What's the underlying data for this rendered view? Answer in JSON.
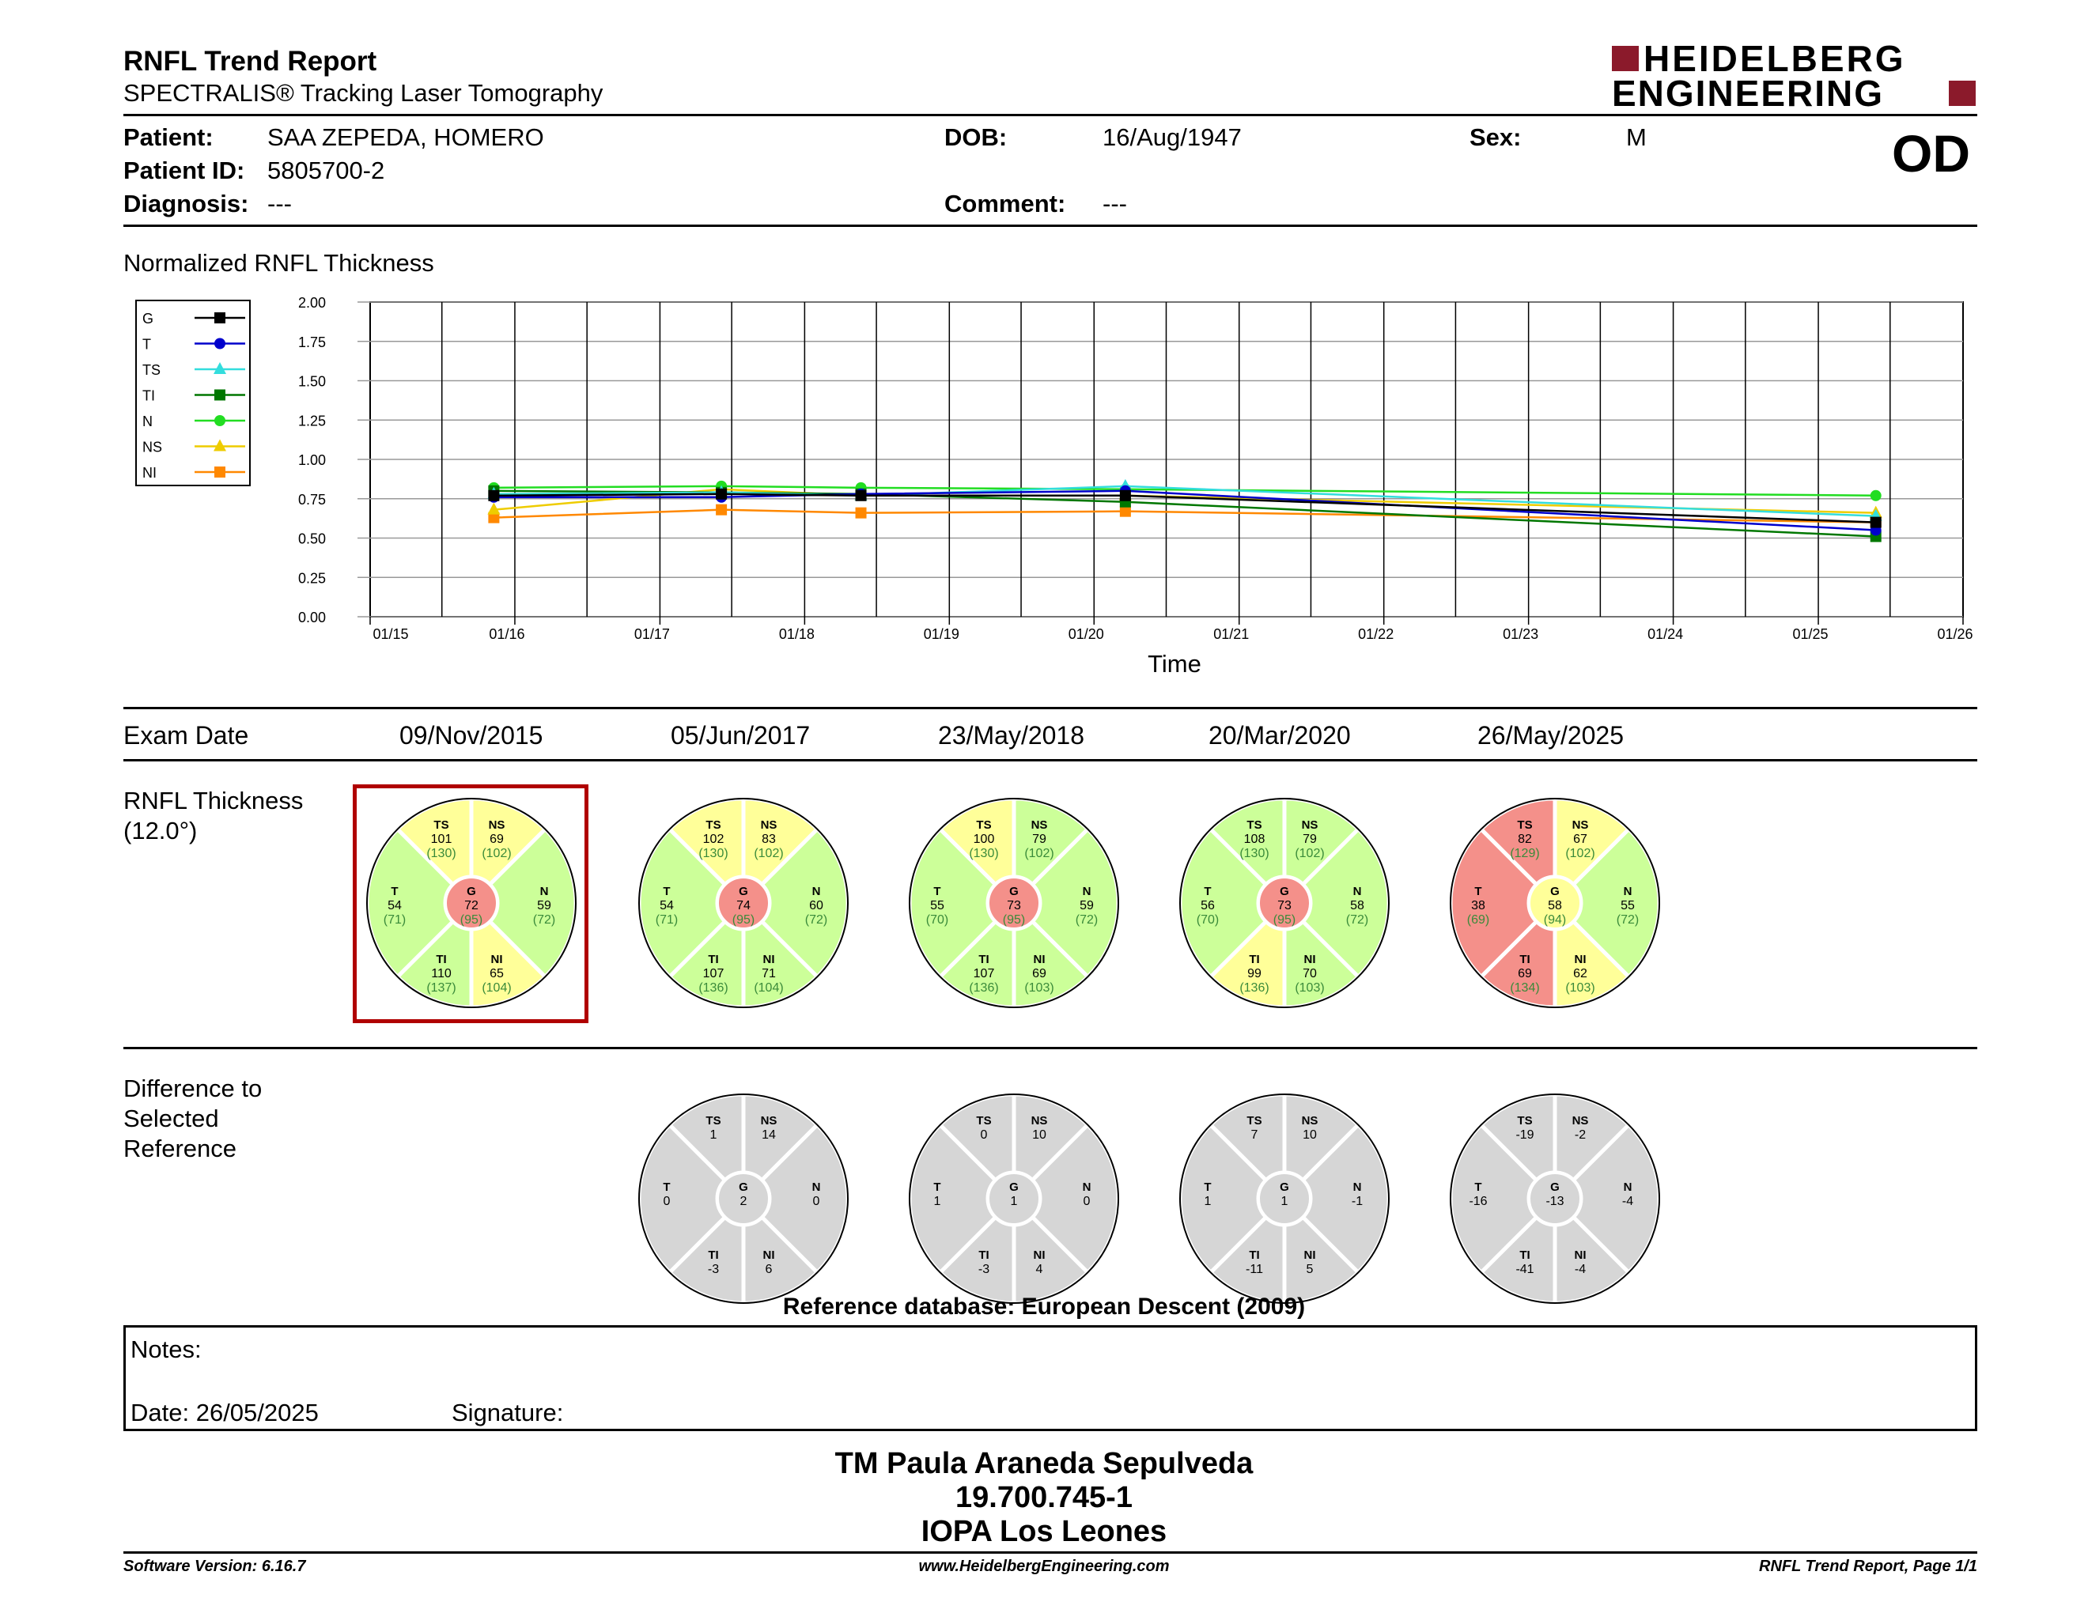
{
  "report": {
    "title": "RNFL Trend Report",
    "subtitle": "SPECTRALIS® Tracking Laser Tomography",
    "eye": "OD"
  },
  "logo": {
    "line1": "HEIDELBERG",
    "line2": "ENGINEERING",
    "color": "#8b1a2b"
  },
  "patient": {
    "name_label": "Patient:",
    "name": "SAA ZEPEDA, HOMERO",
    "dob_label": "DOB:",
    "dob": "16/Aug/1947",
    "sex_label": "Sex:",
    "sex": "M",
    "id_label": "Patient ID:",
    "id": "5805700-2",
    "diagnosis_label": "Diagnosis:",
    "diagnosis": "---",
    "comment_label": "Comment:",
    "comment": "---"
  },
  "chart_data": {
    "type": "line",
    "title": "Normalized RNFL Thickness",
    "xlabel": "Time",
    "ylabel": "",
    "ylim": [
      0,
      2
    ],
    "y_ticks": [
      "0.00",
      "0.25",
      "0.50",
      "0.75",
      "1.00",
      "1.25",
      "1.50",
      "1.75",
      "2.00"
    ],
    "x_ticks": [
      "01/15",
      "01/16",
      "01/17",
      "01/18",
      "01/19",
      "01/20",
      "01/21",
      "01/22",
      "01/23",
      "01/24",
      "01/25",
      "01/26"
    ],
    "x": [
      "2015-11-09",
      "2017-06-05",
      "2018-05-23",
      "2020-03-20",
      "2025-05-26"
    ],
    "grid": true,
    "legend_position": "top-left",
    "series": [
      {
        "name": "G",
        "color": "#000000",
        "marker": "square",
        "values": [
          0.77,
          0.78,
          0.77,
          0.77,
          0.6
        ]
      },
      {
        "name": "T",
        "color": "#0000cc",
        "marker": "circle",
        "values": [
          0.76,
          0.76,
          0.78,
          0.8,
          0.55
        ]
      },
      {
        "name": "TS",
        "color": "#33dddd",
        "marker": "triangle",
        "values": [
          0.78,
          0.79,
          0.77,
          0.83,
          0.64
        ]
      },
      {
        "name": "TI",
        "color": "#007700",
        "marker": "square",
        "values": [
          0.8,
          0.79,
          0.78,
          0.73,
          0.51
        ]
      },
      {
        "name": "N",
        "color": "#22dd22",
        "marker": "circle",
        "values": [
          0.82,
          0.83,
          0.82,
          0.81,
          0.77
        ]
      },
      {
        "name": "NS",
        "color": "#eecc00",
        "marker": "triangle",
        "values": [
          0.68,
          0.81,
          0.77,
          0.77,
          0.66
        ]
      },
      {
        "name": "NI",
        "color": "#ff8800",
        "marker": "square",
        "values": [
          0.63,
          0.68,
          0.66,
          0.67,
          0.6
        ]
      }
    ]
  },
  "exam": {
    "label": "Exam Date",
    "dates": [
      "09/Nov/2015",
      "05/Jun/2017",
      "23/May/2018",
      "20/Mar/2020",
      "26/May/2025"
    ]
  },
  "thickness": {
    "label_line1": "RNFL Thickness",
    "label_line2": "(12.0°)",
    "selected_index": 0,
    "colors": {
      "green": "#ccff99",
      "yellow": "#ffff99",
      "red": "#f4908a",
      "gray": "#d6d6d6"
    },
    "charts": [
      {
        "TS": [
          "101",
          "(130)",
          "yellow"
        ],
        "NS": [
          "69",
          "(102)",
          "yellow"
        ],
        "T": [
          "54",
          "(71)",
          "green"
        ],
        "G": [
          "72",
          "(95)",
          "red"
        ],
        "N": [
          "59",
          "(72)",
          "green"
        ],
        "TI": [
          "110",
          "(137)",
          "green"
        ],
        "NI": [
          "65",
          "(104)",
          "yellow"
        ]
      },
      {
        "TS": [
          "102",
          "(130)",
          "yellow"
        ],
        "NS": [
          "83",
          "(102)",
          "yellow"
        ],
        "T": [
          "54",
          "(71)",
          "green"
        ],
        "G": [
          "74",
          "(95)",
          "red"
        ],
        "N": [
          "60",
          "(72)",
          "green"
        ],
        "TI": [
          "107",
          "(136)",
          "green"
        ],
        "NI": [
          "71",
          "(104)",
          "green"
        ]
      },
      {
        "TS": [
          "100",
          "(130)",
          "yellow"
        ],
        "NS": [
          "79",
          "(102)",
          "green"
        ],
        "T": [
          "55",
          "(70)",
          "green"
        ],
        "G": [
          "73",
          "(95)",
          "red"
        ],
        "N": [
          "59",
          "(72)",
          "green"
        ],
        "TI": [
          "107",
          "(136)",
          "green"
        ],
        "NI": [
          "69",
          "(103)",
          "green"
        ]
      },
      {
        "TS": [
          "108",
          "(130)",
          "green"
        ],
        "NS": [
          "79",
          "(102)",
          "green"
        ],
        "T": [
          "56",
          "(70)",
          "green"
        ],
        "G": [
          "73",
          "(95)",
          "red"
        ],
        "N": [
          "58",
          "(72)",
          "green"
        ],
        "TI": [
          "99",
          "(136)",
          "yellow"
        ],
        "NI": [
          "70",
          "(103)",
          "green"
        ]
      },
      {
        "TS": [
          "82",
          "(129)",
          "red"
        ],
        "NS": [
          "67",
          "(102)",
          "yellow"
        ],
        "T": [
          "38",
          "(69)",
          "red"
        ],
        "G": [
          "58",
          "(94)",
          "yellow"
        ],
        "N": [
          "55",
          "(72)",
          "green"
        ],
        "TI": [
          "69",
          "(134)",
          "red"
        ],
        "NI": [
          "62",
          "(103)",
          "yellow"
        ]
      }
    ]
  },
  "difference": {
    "label_line1": "Difference to",
    "label_line2": "Selected",
    "label_line3": "Reference",
    "charts": [
      {
        "TS": "1",
        "NS": "14",
        "T": "0",
        "G": "2",
        "N": "0",
        "TI": "-3",
        "NI": "6"
      },
      {
        "TS": "0",
        "NS": "10",
        "T": "1",
        "G": "1",
        "N": "0",
        "TI": "-3",
        "NI": "4"
      },
      {
        "TS": "7",
        "NS": "10",
        "T": "1",
        "G": "1",
        "N": "-1",
        "TI": "-11",
        "NI": "5"
      },
      {
        "TS": "-19",
        "NS": "-2",
        "T": "-16",
        "G": "-13",
        "N": "-4",
        "TI": "-41",
        "NI": "-4"
      }
    ]
  },
  "reference_db": "Reference database: European Descent (2009)",
  "notes": {
    "label": "Notes:",
    "date": "Date: 26/05/2025",
    "signature": "Signature:"
  },
  "signer": {
    "line1": "TM Paula Araneda Sepulveda",
    "line2": "19.700.745-1",
    "line3": "IOPA Los Leones"
  },
  "footer": {
    "software": "Software Version: 6.16.7",
    "website": "www.HeidelbergEngineering.com",
    "page": "RNFL Trend Report, Page 1/1"
  }
}
